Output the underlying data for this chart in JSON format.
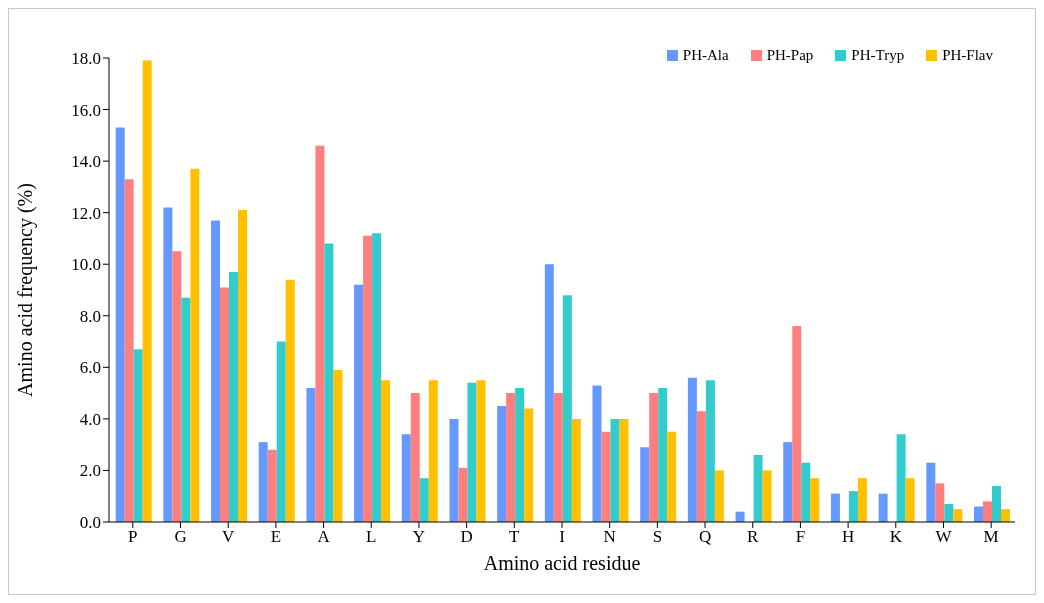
{
  "chart_data": {
    "type": "bar",
    "xlabel": "Amino acid residue",
    "ylabel": "Amino acid frequency (%)",
    "categories": [
      "P",
      "G",
      "V",
      "E",
      "A",
      "L",
      "Y",
      "D",
      "T",
      "I",
      "N",
      "S",
      "Q",
      "R",
      "F",
      "H",
      "K",
      "W",
      "M"
    ],
    "series": [
      {
        "name": "PH-Ala",
        "color": "#6699ff",
        "values": [
          15.3,
          12.2,
          11.7,
          3.1,
          5.2,
          9.2,
          3.4,
          4.0,
          4.5,
          10.0,
          5.3,
          2.9,
          5.6,
          0.4,
          3.1,
          1.1,
          1.1,
          2.3,
          0.6
        ]
      },
      {
        "name": "PH-Pap",
        "color": "#ff7f7f",
        "values": [
          13.3,
          10.5,
          9.1,
          2.8,
          14.6,
          11.1,
          5.0,
          2.1,
          5.0,
          5.0,
          3.5,
          5.0,
          4.3,
          null,
          7.6,
          null,
          null,
          1.5,
          0.8
        ]
      },
      {
        "name": "PH-Tryp",
        "color": "#33cccc",
        "values": [
          6.7,
          8.7,
          9.7,
          7.0,
          10.8,
          11.2,
          1.7,
          5.4,
          5.2,
          8.8,
          4.0,
          5.2,
          5.5,
          2.6,
          2.3,
          1.2,
          3.4,
          0.7,
          1.4
        ]
      },
      {
        "name": "PH-Flav",
        "color": "#ffc000",
        "values": [
          17.9,
          13.7,
          12.1,
          9.4,
          5.9,
          5.5,
          5.5,
          5.5,
          4.4,
          4.0,
          4.0,
          3.5,
          2.0,
          2.0,
          1.7,
          1.7,
          1.7,
          0.5,
          0.5
        ]
      }
    ],
    "ylim": [
      0,
      18
    ],
    "yticks": [
      {
        "value": 0,
        "label": "0.0"
      },
      {
        "value": 2,
        "label": "2.0"
      },
      {
        "value": 4,
        "label": "4.0"
      },
      {
        "value": 6,
        "label": "6.0"
      },
      {
        "value": 8,
        "label": "8.0"
      },
      {
        "value": 10,
        "label": "10.0"
      },
      {
        "value": 12,
        "label": "12.0"
      },
      {
        "value": 14,
        "label": "14.0"
      },
      {
        "value": 16,
        "label": "16.0"
      },
      {
        "value": 18,
        "label": "18.0"
      }
    ],
    "grid": false,
    "legend": "top right"
  }
}
